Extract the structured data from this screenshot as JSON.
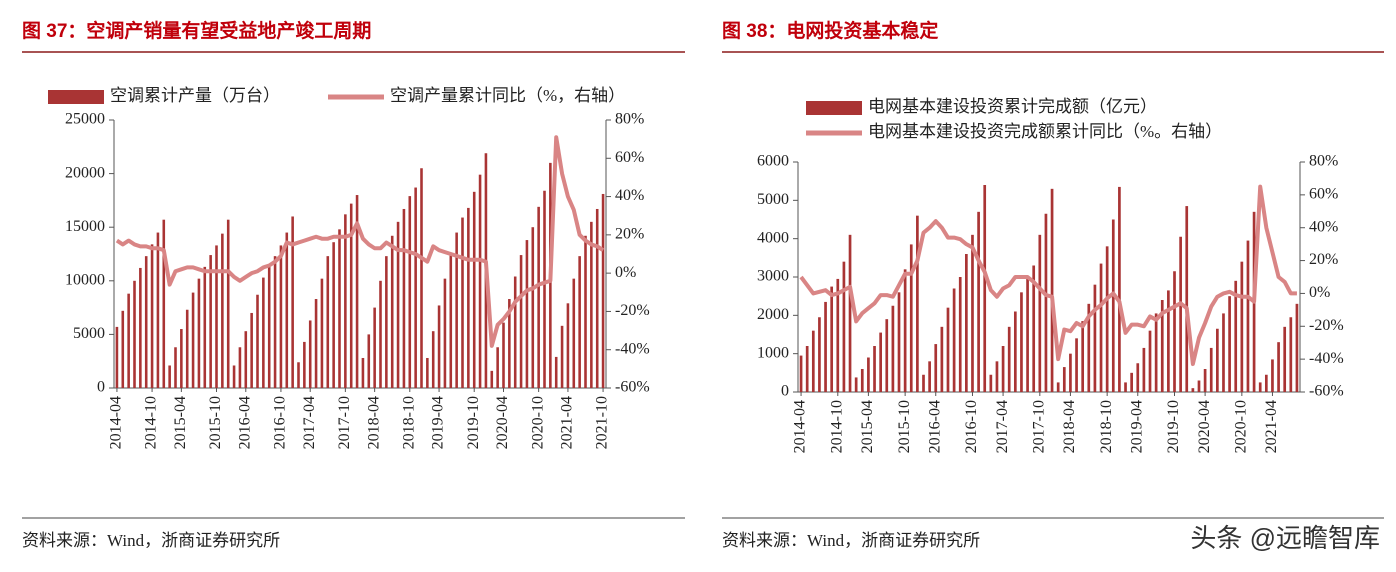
{
  "chart_data": [
    {
      "type": "bar",
      "title": "图 37：空调产销量有望受益地产竣工周期",
      "source": "资料来源：Wind，浙商证券研究所",
      "categories": [
        "2014-04",
        null,
        null,
        null,
        null,
        null,
        "2014-10",
        null,
        null,
        null,
        null,
        "2015-04",
        null,
        null,
        null,
        null,
        null,
        "2015-10",
        null,
        null,
        null,
        null,
        "2016-04",
        null,
        null,
        null,
        null,
        null,
        "2016-10",
        null,
        null,
        null,
        null,
        "2017-04",
        null,
        null,
        null,
        null,
        null,
        "2017-10",
        null,
        null,
        null,
        null,
        "2018-04",
        null,
        null,
        null,
        null,
        null,
        "2018-10",
        null,
        null,
        null,
        null,
        "2019-04",
        null,
        null,
        null,
        null,
        null,
        "2019-10",
        null,
        null,
        null,
        null,
        "2020-04",
        null,
        null,
        null,
        null,
        null,
        "2020-10",
        null,
        null,
        null,
        null,
        "2021-04",
        null,
        null,
        null,
        null,
        null,
        "2021-10"
      ],
      "series": [
        {
          "name": "空调累计产量（万台）",
          "type": "bar",
          "color": "#a93434",
          "values": [
            5700,
            7200,
            8800,
            10000,
            11200,
            12300,
            13400,
            14500,
            15700,
            2100,
            3800,
            5500,
            7300,
            8900,
            10200,
            11300,
            12400,
            13300,
            14400,
            15700,
            2100,
            3800,
            5300,
            7000,
            8700,
            10300,
            11500,
            12300,
            13300,
            14500,
            16000,
            2400,
            4300,
            6300,
            8300,
            10200,
            12300,
            13600,
            14800,
            16200,
            17200,
            18000,
            2800,
            5000,
            7500,
            10000,
            12300,
            14200,
            15500,
            16700,
            17900,
            18700,
            20500,
            2800,
            5300,
            7700,
            10200,
            12500,
            14500,
            15900,
            16800,
            18300,
            19900,
            21900,
            1600,
            3800,
            6100,
            8300,
            10400,
            12400,
            13800,
            15000,
            16900,
            18400,
            21000,
            2900,
            5800,
            7900,
            10200,
            12300,
            14200,
            15500,
            16700,
            18100
          ]
        },
        {
          "name": "空调产量累计同比（%，右轴）",
          "type": "line",
          "axis": "y2",
          "color": "#d98585",
          "values": [
            17,
            15,
            17,
            15,
            14,
            14,
            13,
            13,
            12,
            -6,
            1,
            2,
            3,
            3,
            2,
            1,
            1,
            1,
            1,
            1,
            -2,
            -4,
            -2,
            0,
            1,
            3,
            4,
            6,
            9,
            16,
            15,
            16,
            17,
            18,
            19,
            18,
            18,
            19,
            19,
            19,
            20,
            26,
            18,
            15,
            13,
            13,
            16,
            14,
            12,
            12,
            11,
            10,
            8,
            6,
            14,
            12,
            11,
            10,
            9,
            8,
            7,
            7,
            7,
            6,
            -38,
            -27,
            -24,
            -20,
            -15,
            -12,
            -9,
            -8,
            -6,
            -5,
            -4,
            71,
            52,
            40,
            33,
            20,
            17,
            15,
            14,
            12
          ]
        }
      ],
      "ylim": [
        0,
        25000
      ],
      "yticks": [
        0,
        5000,
        10000,
        15000,
        20000,
        25000
      ],
      "y2lim": [
        -60,
        80
      ],
      "y2ticks": [
        {
          "value": -60,
          "label": "-60%"
        },
        {
          "value": -40,
          "label": "-40%"
        },
        {
          "value": -20,
          "label": "-20%"
        },
        {
          "value": 0,
          "label": "0%"
        },
        {
          "value": 20,
          "label": "20%"
        },
        {
          "value": 40,
          "label": "40%"
        },
        {
          "value": 60,
          "label": "60%"
        },
        {
          "value": 80,
          "label": "80%"
        }
      ]
    },
    {
      "type": "bar",
      "title": "图 38：电网投资基本稳定",
      "source": "资料来源：Wind，浙商证券研究所",
      "categories": [
        "2014-04",
        null,
        null,
        null,
        null,
        null,
        "2014-10",
        null,
        null,
        null,
        null,
        "2015-04",
        null,
        null,
        null,
        null,
        null,
        "2015-10",
        null,
        null,
        null,
        null,
        "2016-04",
        null,
        null,
        null,
        null,
        null,
        "2016-10",
        null,
        null,
        null,
        null,
        "2017-04",
        null,
        null,
        null,
        null,
        null,
        "2017-10",
        null,
        null,
        null,
        null,
        "2018-04",
        null,
        null,
        null,
        null,
        null,
        "2018-10",
        null,
        null,
        null,
        null,
        "2019-04",
        null,
        null,
        null,
        null,
        null,
        "2019-10",
        null,
        null,
        null,
        null,
        "2020-04",
        null,
        null,
        null,
        null,
        null,
        "2020-10",
        null,
        null,
        null,
        null,
        "2021-04",
        null,
        null,
        null,
        null
      ],
      "series": [
        {
          "name": "电网基本建设投资累计完成额（亿元）",
          "type": "bar",
          "color": "#a93434",
          "values": [
            950,
            1200,
            1600,
            1950,
            2350,
            2750,
            2950,
            3400,
            4100,
            380,
            600,
            900,
            1200,
            1550,
            1900,
            2250,
            2600,
            3200,
            3850,
            4600,
            450,
            800,
            1250,
            1700,
            2200,
            2700,
            3000,
            3600,
            4100,
            4700,
            5400,
            450,
            800,
            1200,
            1700,
            2100,
            2600,
            3000,
            3300,
            4100,
            4650,
            5300,
            250,
            650,
            1000,
            1400,
            1850,
            2300,
            2800,
            3350,
            3800,
            4500,
            5350,
            250,
            500,
            750,
            1150,
            1600,
            2050,
            2400,
            2650,
            3150,
            4050,
            4850,
            100,
            300,
            600,
            1150,
            1650,
            2050,
            2500,
            2900,
            3400,
            3950,
            4700,
            250,
            450,
            850,
            1300,
            1700,
            1950,
            2300
          ]
        },
        {
          "name": "电网基本建设投资完成额累计同比（%。右轴）",
          "type": "line",
          "axis": "y2",
          "color": "#d98585",
          "values": [
            10,
            5,
            0,
            1,
            2,
            -1,
            0,
            2,
            4,
            -17,
            -12,
            -9,
            -6,
            -1,
            -1,
            -2,
            5,
            12,
            12,
            20,
            37,
            40,
            44,
            40,
            34,
            34,
            33,
            30,
            28,
            20,
            13,
            2,
            -2,
            3,
            5,
            10,
            10,
            10,
            7,
            3,
            -1,
            -2,
            -40,
            -22,
            -23,
            -18,
            -20,
            -14,
            -10,
            -7,
            -3,
            0,
            -5,
            -24,
            -19,
            -19,
            -20,
            -14,
            -16,
            -12,
            -10,
            -8,
            -6,
            -9,
            -43,
            -27,
            -18,
            -8,
            -2,
            0,
            1,
            -1,
            -2,
            -2,
            -5,
            65,
            40,
            25,
            10,
            7,
            0,
            0
          ]
        }
      ],
      "ylim": [
        0,
        6000
      ],
      "yticks": [
        0,
        1000,
        2000,
        3000,
        4000,
        5000,
        6000
      ],
      "y2lim": [
        -60,
        80
      ],
      "y2ticks": [
        {
          "value": -60,
          "label": "-60%"
        },
        {
          "value": -40,
          "label": "-40%"
        },
        {
          "value": -20,
          "label": "-20%"
        },
        {
          "value": 0,
          "label": "0%"
        },
        {
          "value": 20,
          "label": "20%"
        },
        {
          "value": 40,
          "label": "40%"
        },
        {
          "value": 60,
          "label": "60%"
        },
        {
          "value": 80,
          "label": "80%"
        }
      ]
    }
  ],
  "watermark": "头条 @远瞻智库"
}
